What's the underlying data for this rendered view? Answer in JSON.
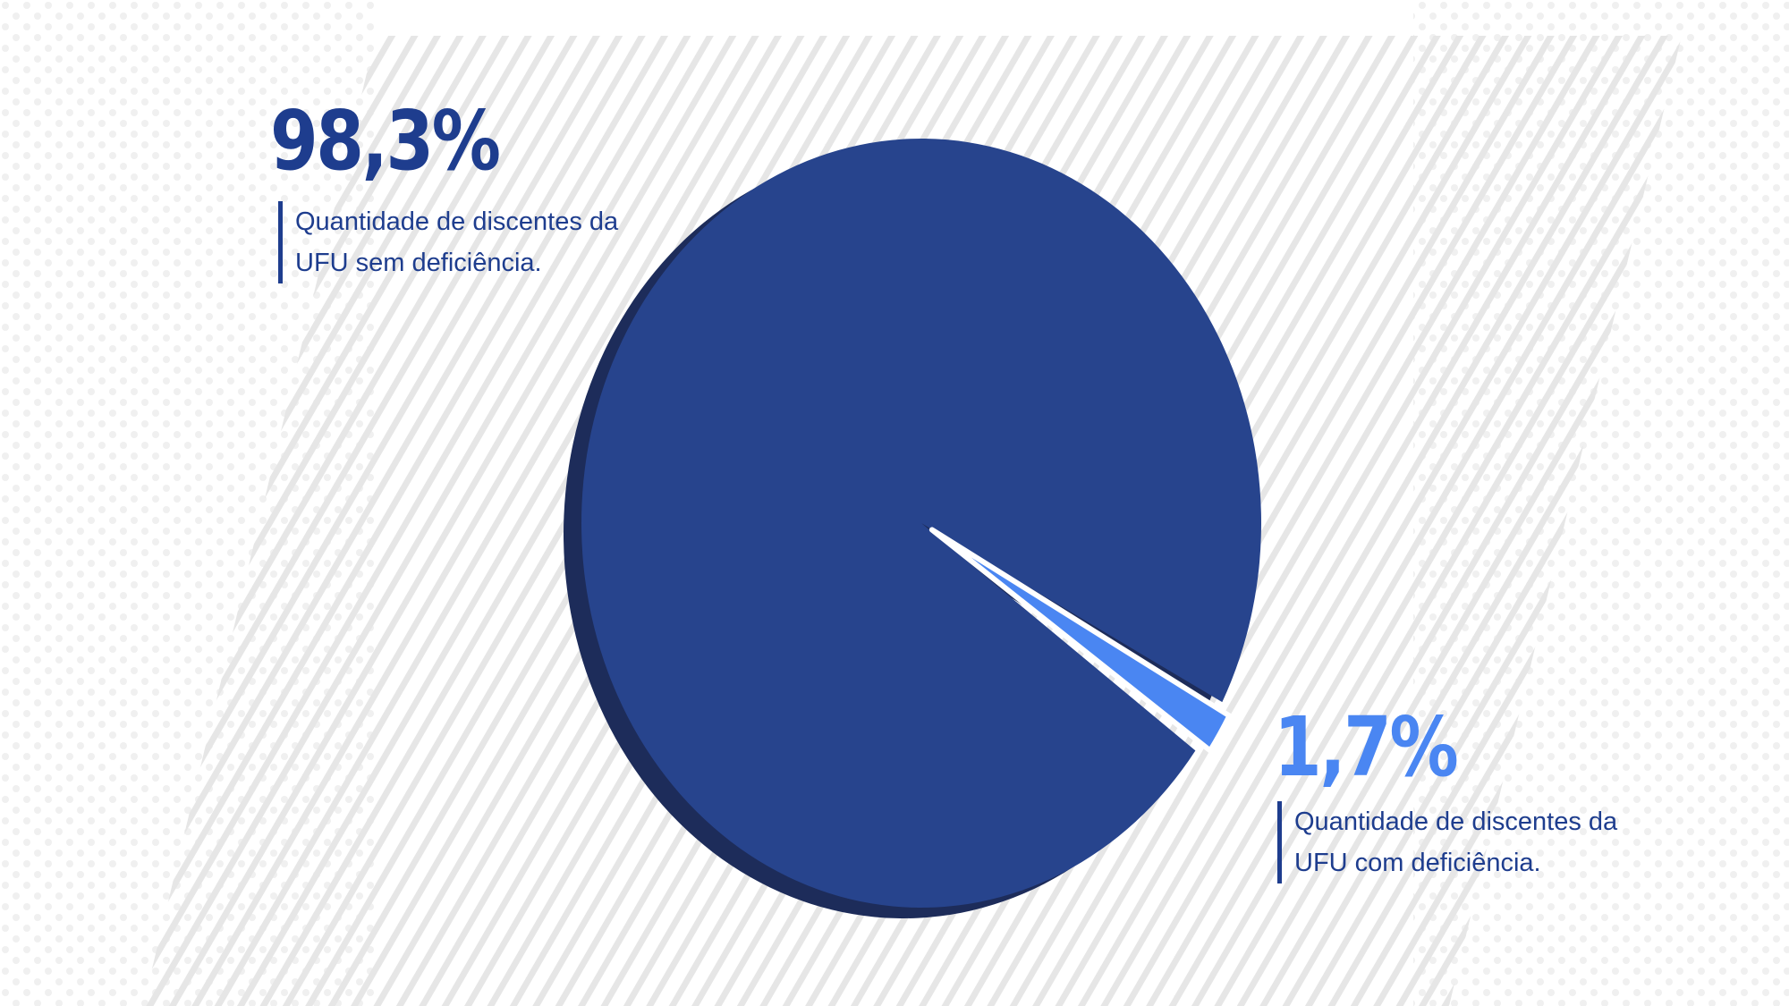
{
  "colors": {
    "primary": "#27448d",
    "primary_shadow": "#1d2c5a",
    "accent": "#4a86f2",
    "text_dark": "#1e3d8e",
    "background": "#ffffff",
    "pattern": "#e7e7e7"
  },
  "labels": {
    "major_percent": "98,3%",
    "major_description": "Quantidade de discentes da UFU sem deficiência.",
    "minor_percent": "1,7%",
    "minor_description": "Quantidade de discentes da UFU com deficiência."
  },
  "chart_data": {
    "type": "pie",
    "style": "3d-exploded",
    "categories": [
      "Quantidade de discentes da UFU sem deficiência.",
      "Quantidade de discentes da UFU com deficiência."
    ],
    "values": [
      98.3,
      1.7
    ],
    "value_labels": [
      "98,3%",
      "1,7%"
    ],
    "colors": [
      "#27448d",
      "#4a86f2"
    ],
    "exploded": [
      false,
      true
    ]
  }
}
